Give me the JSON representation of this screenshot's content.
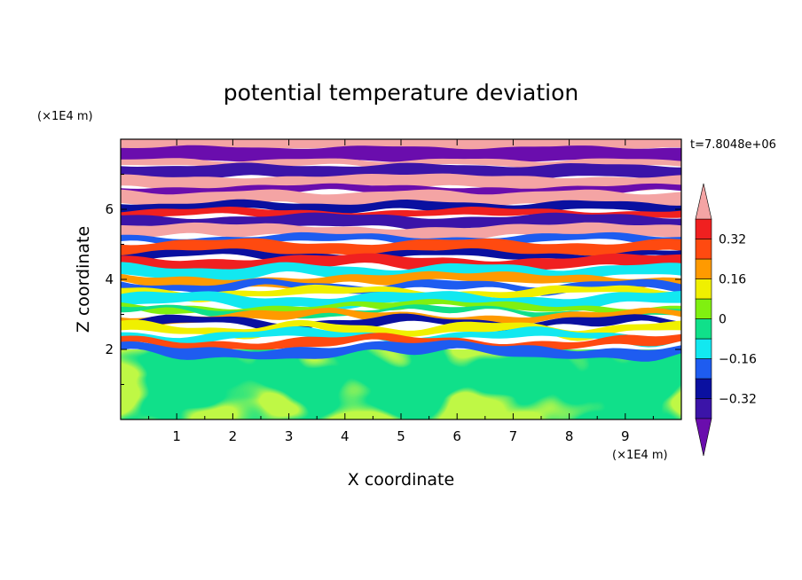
{
  "chart_data": {
    "type": "heatmap",
    "title": "potential temperature deviation",
    "xlabel": "X coordinate",
    "ylabel": "Z coordinate",
    "x_unit": "(×1E4 m)",
    "y_unit": "(×1E4 m)",
    "time_label": "t=7.8048e+06",
    "xlim": [
      0,
      10
    ],
    "ylim": [
      0,
      8
    ],
    "x_ticks": [
      "1",
      "2",
      "3",
      "4",
      "5",
      "6",
      "7",
      "8",
      "9"
    ],
    "y_ticks": [
      "2",
      "4",
      "6"
    ],
    "colorbar": {
      "tick_labels": [
        "0.32",
        "0.16",
        "0",
        "−0.16",
        "−0.32"
      ],
      "tick_values": [
        0.32,
        0.16,
        0,
        -0.16,
        -0.32
      ],
      "levels": [
        -0.4,
        -0.32,
        -0.24,
        -0.16,
        -0.08,
        0,
        0.08,
        0.16,
        0.24,
        0.32,
        0.4
      ],
      "colors": [
        "#6a0dad",
        "#3b14a8",
        "#0a10a0",
        "#1e5cf0",
        "#12e8f0",
        "#10e08a",
        "#80f010",
        "#f0f000",
        "#ff9a00",
        "#ff4a10",
        "#f02020",
        "#f4a4a4"
      ],
      "extend": "both"
    },
    "structure": {
      "lower_layer_top_z": 2.0,
      "lower_layer_range": [
        -0.04,
        0.08
      ],
      "upper_layer_pattern": "alternating horizontal bands of strong positive and negative deviation"
    }
  }
}
